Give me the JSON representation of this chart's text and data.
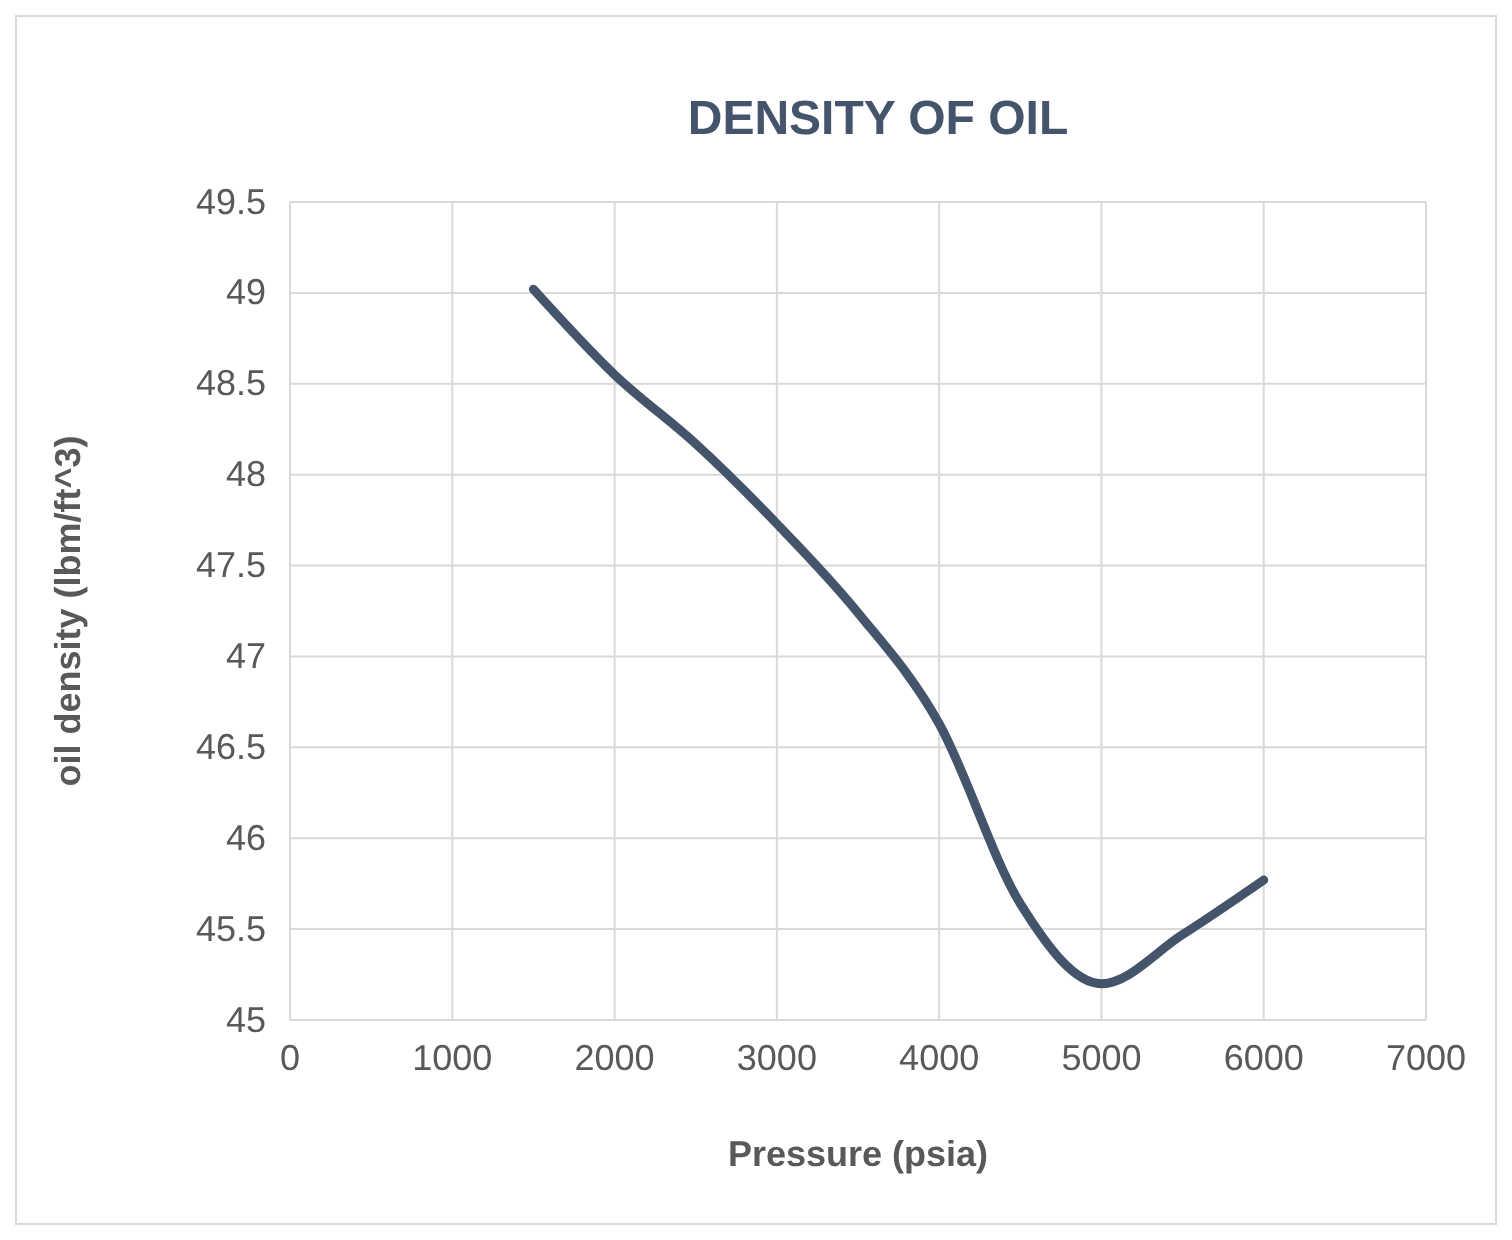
{
  "chart_data": {
    "type": "line",
    "title": "DENSITY OF OIL",
    "xlabel": "Pressure (psia)",
    "ylabel": "oil density (lbm/ft^3)",
    "series": [
      {
        "color": "#44546a",
        "x": [
          1500,
          2000,
          2500,
          3000,
          3500,
          4000,
          4500,
          5000,
          5500,
          6000
        ],
        "values": [
          49.02,
          48.55,
          48.17,
          47.73,
          47.24,
          46.63,
          45.64,
          45.2,
          45.47,
          45.77
        ]
      }
    ],
    "xlim": [
      0,
      7000
    ],
    "xticks": [
      0,
      1000,
      2000,
      3000,
      4000,
      5000,
      6000,
      7000
    ],
    "ylim": [
      45,
      49.5
    ],
    "yticks": [
      45,
      45.5,
      46,
      46.5,
      47,
      47.5,
      48,
      48.5,
      49,
      49.5
    ],
    "grid": true,
    "marker": "none",
    "line_style": "solid"
  }
}
